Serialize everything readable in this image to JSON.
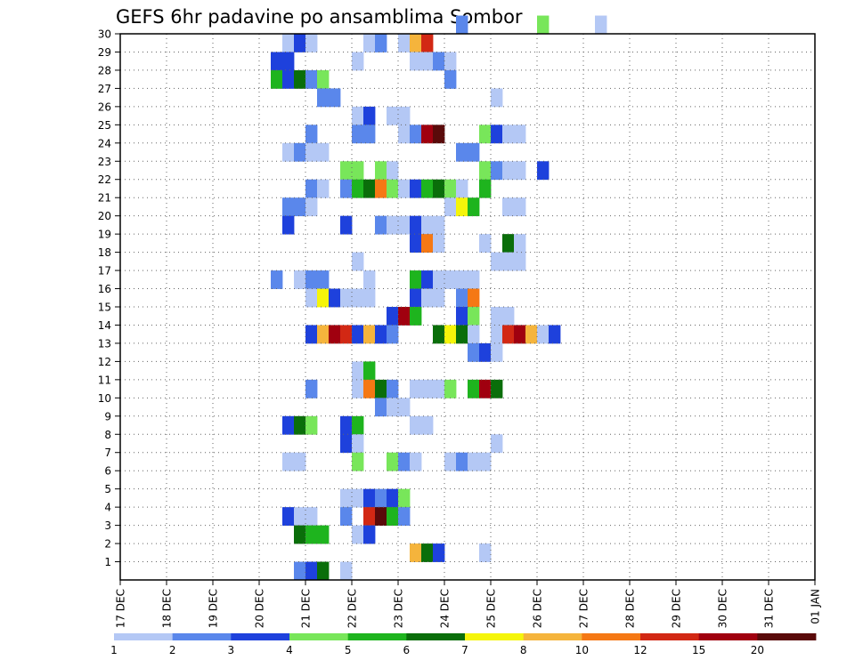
{
  "chart_data": {
    "type": "heatmap",
    "title": "GEFS 6hr padavine po ansamblima Sombor",
    "xlabel": "",
    "ylabel": "",
    "x_tick_labels": [
      "17 DEC",
      "18 DEC",
      "19 DEC",
      "20 DEC",
      "21 DEC",
      "22 DEC",
      "23 DEC",
      "24 DEC",
      "25 DEC",
      "26 DEC",
      "27 DEC",
      "28 DEC",
      "29 DEC",
      "30 DEC",
      "31 DEC",
      "01 JAN"
    ],
    "y_tick_labels": [
      "1",
      "2",
      "3",
      "4",
      "5",
      "6",
      "7",
      "8",
      "9",
      "10",
      "11",
      "12",
      "13",
      "14",
      "15",
      "16",
      "17",
      "18",
      "19",
      "20",
      "21",
      "22",
      "23",
      "24",
      "25",
      "26",
      "27",
      "28",
      "29",
      "30"
    ],
    "x_range": [
      0,
      60
    ],
    "y_range": [
      0,
      30
    ],
    "grid": true,
    "colorbar": {
      "labels": [
        "1",
        "2",
        "3",
        "4",
        "5",
        "6",
        "7",
        "8",
        "10",
        "12",
        "15",
        "20"
      ],
      "colors": [
        "#b4c8f5",
        "#5a87eb",
        "#1e41dc",
        "#78e65a",
        "#1eb41e",
        "#0a6e0a",
        "#f5f50a",
        "#f5b43c",
        "#f57814",
        "#d22814",
        "#a0000f",
        "#5a0a0a"
      ]
    },
    "cells": [
      [
        29,
        30,
        2
      ],
      [
        36,
        30,
        4
      ],
      [
        41,
        30,
        1
      ],
      [
        14,
        29,
        1
      ],
      [
        15,
        29,
        3
      ],
      [
        16,
        29,
        1
      ],
      [
        21,
        29,
        1
      ],
      [
        22,
        29,
        2
      ],
      [
        24,
        29,
        1
      ],
      [
        25,
        29,
        8
      ],
      [
        26,
        29,
        10
      ],
      [
        13,
        28,
        3
      ],
      [
        14,
        28,
        3
      ],
      [
        20,
        28,
        1
      ],
      [
        25,
        28,
        1
      ],
      [
        26,
        28,
        1
      ],
      [
        27,
        28,
        2
      ],
      [
        28,
        28,
        1
      ],
      [
        13,
        27,
        5
      ],
      [
        14,
        27,
        3
      ],
      [
        15,
        27,
        6
      ],
      [
        16,
        27,
        2
      ],
      [
        17,
        27,
        4
      ],
      [
        28,
        27,
        2
      ],
      [
        17,
        26,
        2
      ],
      [
        18,
        26,
        2
      ],
      [
        32,
        26,
        1
      ],
      [
        20,
        25,
        1
      ],
      [
        21,
        25,
        3
      ],
      [
        23,
        25,
        1
      ],
      [
        24,
        25,
        1
      ],
      [
        16,
        24,
        2
      ],
      [
        20,
        24,
        2
      ],
      [
        21,
        24,
        2
      ],
      [
        24,
        24,
        1
      ],
      [
        25,
        24,
        2
      ],
      [
        26,
        24,
        11
      ],
      [
        27,
        24,
        12
      ],
      [
        31,
        24,
        4
      ],
      [
        32,
        24,
        3
      ],
      [
        33,
        24,
        1
      ],
      [
        34,
        24,
        1
      ],
      [
        14,
        23,
        1
      ],
      [
        15,
        23,
        2
      ],
      [
        16,
        23,
        1
      ],
      [
        17,
        23,
        1
      ],
      [
        29,
        23,
        2
      ],
      [
        30,
        23,
        2
      ],
      [
        19,
        22,
        4
      ],
      [
        20,
        22,
        4
      ],
      [
        22,
        22,
        4
      ],
      [
        23,
        22,
        1
      ],
      [
        31,
        22,
        4
      ],
      [
        32,
        22,
        2
      ],
      [
        33,
        22,
        1
      ],
      [
        34,
        22,
        1
      ],
      [
        36,
        22,
        3
      ],
      [
        16,
        21,
        2
      ],
      [
        17,
        21,
        1
      ],
      [
        19,
        21,
        2
      ],
      [
        20,
        21,
        5
      ],
      [
        21,
        21,
        6
      ],
      [
        22,
        21,
        9
      ],
      [
        23,
        21,
        4
      ],
      [
        24,
        21,
        1
      ],
      [
        25,
        21,
        3
      ],
      [
        26,
        21,
        5
      ],
      [
        27,
        21,
        6
      ],
      [
        28,
        21,
        4
      ],
      [
        29,
        21,
        1
      ],
      [
        31,
        21,
        5
      ],
      [
        14,
        20,
        2
      ],
      [
        15,
        20,
        2
      ],
      [
        16,
        20,
        1
      ],
      [
        28,
        20,
        1
      ],
      [
        29,
        20,
        7
      ],
      [
        30,
        20,
        5
      ],
      [
        33,
        20,
        1
      ],
      [
        34,
        20,
        1
      ],
      [
        14,
        19,
        3
      ],
      [
        19,
        19,
        3
      ],
      [
        22,
        19,
        2
      ],
      [
        23,
        19,
        1
      ],
      [
        24,
        19,
        1
      ],
      [
        25,
        19,
        3
      ],
      [
        26,
        19,
        1
      ],
      [
        27,
        19,
        1
      ],
      [
        25,
        18,
        3
      ],
      [
        26,
        18,
        9
      ],
      [
        27,
        18,
        1
      ],
      [
        31,
        18,
        1
      ],
      [
        33,
        18,
        6
      ],
      [
        34,
        18,
        1
      ],
      [
        20,
        17,
        1
      ],
      [
        32,
        17,
        1
      ],
      [
        33,
        17,
        1
      ],
      [
        34,
        17,
        1
      ],
      [
        13,
        16,
        2
      ],
      [
        15,
        16,
        1
      ],
      [
        16,
        16,
        2
      ],
      [
        17,
        16,
        2
      ],
      [
        21,
        16,
        1
      ],
      [
        25,
        16,
        5
      ],
      [
        26,
        16,
        3
      ],
      [
        27,
        16,
        1
      ],
      [
        28,
        16,
        1
      ],
      [
        29,
        16,
        1
      ],
      [
        30,
        16,
        1
      ],
      [
        16,
        15,
        1
      ],
      [
        17,
        15,
        7
      ],
      [
        18,
        15,
        3
      ],
      [
        19,
        15,
        1
      ],
      [
        20,
        15,
        1
      ],
      [
        21,
        15,
        1
      ],
      [
        25,
        15,
        3
      ],
      [
        26,
        15,
        1
      ],
      [
        27,
        15,
        1
      ],
      [
        29,
        15,
        2
      ],
      [
        30,
        15,
        9
      ],
      [
        23,
        14,
        3
      ],
      [
        24,
        14,
        11
      ],
      [
        25,
        14,
        5
      ],
      [
        29,
        14,
        3
      ],
      [
        30,
        14,
        4
      ],
      [
        32,
        14,
        1
      ],
      [
        33,
        14,
        1
      ],
      [
        16,
        13,
        3
      ],
      [
        17,
        13,
        8
      ],
      [
        18,
        13,
        11
      ],
      [
        19,
        13,
        10
      ],
      [
        20,
        13,
        3
      ],
      [
        21,
        13,
        8
      ],
      [
        22,
        13,
        3
      ],
      [
        23,
        13,
        2
      ],
      [
        27,
        13,
        6
      ],
      [
        28,
        13,
        7
      ],
      [
        29,
        13,
        6
      ],
      [
        30,
        13,
        1
      ],
      [
        32,
        13,
        1
      ],
      [
        33,
        13,
        10
      ],
      [
        34,
        13,
        11
      ],
      [
        35,
        13,
        8
      ],
      [
        36,
        13,
        1
      ],
      [
        37,
        13,
        3
      ],
      [
        30,
        12,
        2
      ],
      [
        31,
        12,
        3
      ],
      [
        32,
        12,
        1
      ],
      [
        20,
        11,
        1
      ],
      [
        21,
        11,
        5
      ],
      [
        16,
        10,
        2
      ],
      [
        20,
        10,
        1
      ],
      [
        21,
        10,
        9
      ],
      [
        22,
        10,
        6
      ],
      [
        23,
        10,
        2
      ],
      [
        25,
        10,
        1
      ],
      [
        26,
        10,
        1
      ],
      [
        27,
        10,
        1
      ],
      [
        28,
        10,
        4
      ],
      [
        30,
        10,
        5
      ],
      [
        31,
        10,
        11
      ],
      [
        32,
        10,
        6
      ],
      [
        22,
        9,
        2
      ],
      [
        23,
        9,
        1
      ],
      [
        24,
        9,
        1
      ],
      [
        14,
        8,
        3
      ],
      [
        15,
        8,
        6
      ],
      [
        16,
        8,
        4
      ],
      [
        19,
        8,
        3
      ],
      [
        20,
        8,
        5
      ],
      [
        25,
        8,
        1
      ],
      [
        26,
        8,
        1
      ],
      [
        19,
        7,
        3
      ],
      [
        20,
        7,
        1
      ],
      [
        32,
        7,
        1
      ],
      [
        14,
        6,
        1
      ],
      [
        15,
        6,
        1
      ],
      [
        20,
        6,
        4
      ],
      [
        23,
        6,
        4
      ],
      [
        24,
        6,
        2
      ],
      [
        25,
        6,
        1
      ],
      [
        28,
        6,
        1
      ],
      [
        29,
        6,
        2
      ],
      [
        30,
        6,
        1
      ],
      [
        31,
        6,
        1
      ],
      [
        19,
        4,
        1
      ],
      [
        20,
        4,
        1
      ],
      [
        21,
        4,
        3
      ],
      [
        22,
        4,
        2
      ],
      [
        23,
        4,
        3
      ],
      [
        24,
        4,
        4
      ],
      [
        14,
        3,
        3
      ],
      [
        15,
        3,
        1
      ],
      [
        16,
        3,
        1
      ],
      [
        19,
        3,
        2
      ],
      [
        21,
        3,
        10
      ],
      [
        22,
        3,
        12
      ],
      [
        23,
        3,
        5
      ],
      [
        24,
        3,
        2
      ],
      [
        15,
        2,
        6
      ],
      [
        16,
        2,
        5
      ],
      [
        17,
        2,
        5
      ],
      [
        20,
        2,
        1
      ],
      [
        21,
        2,
        3
      ],
      [
        25,
        1,
        8
      ],
      [
        26,
        1,
        6
      ],
      [
        27,
        1,
        3
      ],
      [
        31,
        1,
        1
      ],
      [
        15,
        0,
        2
      ],
      [
        16,
        0,
        3
      ],
      [
        17,
        0,
        6
      ],
      [
        19,
        0,
        1
      ]
    ]
  }
}
